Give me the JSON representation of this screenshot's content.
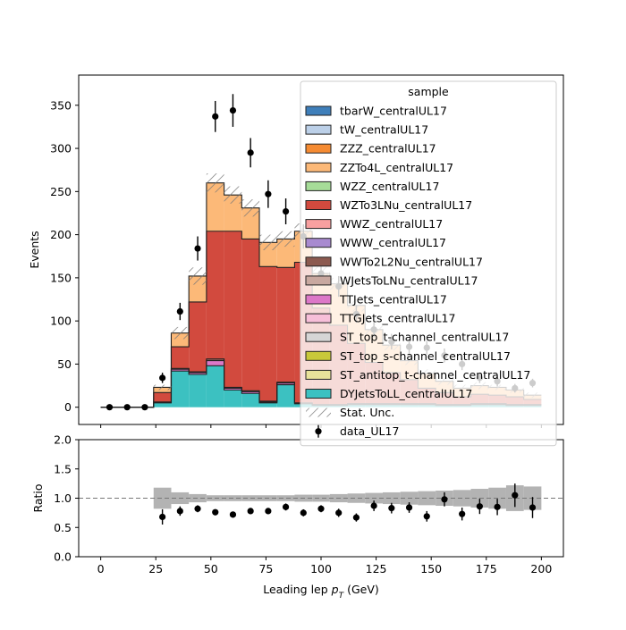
{
  "chart_data": [
    {
      "type": "stacked-histogram",
      "bins": [
        0,
        8,
        16,
        24,
        32,
        40,
        48,
        56,
        64,
        72,
        80,
        88,
        96,
        104,
        112,
        120,
        128,
        136,
        144,
        152,
        160,
        168,
        176,
        184,
        192,
        200
      ],
      "xlim": [
        -10,
        210
      ],
      "ylim": [
        -20,
        385
      ],
      "ylabel": "Events",
      "yticks": [
        "0",
        "50",
        "100",
        "150",
        "200",
        "250",
        "300",
        "350"
      ],
      "xticks": [
        "0",
        "25",
        "50",
        "75",
        "100",
        "125",
        "150",
        "175",
        "200"
      ],
      "legend": {
        "title": "sample",
        "position": "upper right"
      },
      "series": [
        {
          "name": "DYJetsToLL_centralUL17",
          "color": "#3cc1c1",
          "values": [
            0,
            0,
            0,
            5,
            42,
            38,
            48,
            20,
            16,
            5,
            26,
            4,
            2,
            2,
            3,
            3,
            3,
            3,
            3,
            2,
            2,
            3,
            3,
            2,
            2
          ]
        },
        {
          "name": "ST_antitop_t-channel_centralUL17",
          "color": "#e8e29a",
          "values": [
            0,
            0,
            0,
            0,
            0,
            0,
            0,
            0,
            0,
            0,
            0,
            0,
            0,
            0,
            0,
            0,
            0,
            0,
            0,
            0,
            0,
            0,
            0,
            0,
            0
          ]
        },
        {
          "name": "ST_top_s-channel_centralUL17",
          "color": "#c8c83a",
          "values": [
            0,
            0,
            0,
            0,
            0,
            0,
            0,
            0,
            0,
            0,
            0,
            0,
            0,
            0,
            0,
            0,
            0,
            0,
            0,
            0,
            0,
            0,
            0,
            0,
            0
          ]
        },
        {
          "name": "ST_top_t-channel_centralUL17",
          "color": "#d6d6d6",
          "values": [
            0,
            0,
            0,
            0,
            0,
            0,
            0,
            0,
            0,
            0,
            0,
            0,
            0,
            0,
            0,
            0,
            0,
            0,
            0,
            0,
            0,
            0,
            0,
            0,
            0
          ]
        },
        {
          "name": "TTGJets_centralUL17",
          "color": "#f7bfd9",
          "values": [
            0,
            0,
            0,
            0,
            0,
            0,
            0,
            0,
            0,
            0,
            0,
            0,
            0,
            0,
            0,
            0,
            0,
            0,
            0,
            0,
            0,
            0,
            0,
            0,
            0
          ]
        },
        {
          "name": "TTJets_centralUL17",
          "color": "#dc78c8",
          "values": [
            0,
            0,
            0,
            1,
            2,
            2,
            6,
            2,
            2,
            1,
            2,
            1,
            1,
            1,
            1,
            1,
            1,
            1,
            1,
            1,
            1,
            1,
            1,
            1,
            1
          ]
        },
        {
          "name": "WJetsToLNu_centralUL17",
          "color": "#c8a8a0",
          "values": [
            0,
            0,
            0,
            0,
            0,
            0,
            0,
            0,
            0,
            0,
            0,
            0,
            0,
            0,
            0,
            0,
            0,
            0,
            0,
            0,
            0,
            0,
            0,
            0,
            0
          ]
        },
        {
          "name": "WWTo2L2Nu_centralUL17",
          "color": "#8c5a50",
          "values": [
            0,
            0,
            0,
            0,
            1,
            1,
            2,
            1,
            1,
            1,
            1,
            0,
            0,
            0,
            0,
            0,
            0,
            0,
            0,
            0,
            0,
            0,
            0,
            0,
            0
          ]
        },
        {
          "name": "WWW_centralUL17",
          "color": "#a88ad0",
          "values": [
            0,
            0,
            0,
            0,
            0,
            0,
            0,
            0,
            0,
            0,
            0,
            0,
            0,
            0,
            0,
            0,
            0,
            0,
            0,
            0,
            0,
            0,
            0,
            0,
            0
          ]
        },
        {
          "name": "WWZ_centralUL17",
          "color": "#f8a0a0",
          "values": [
            0,
            0,
            0,
            0,
            0,
            0,
            0,
            0,
            0,
            0,
            0,
            0,
            0,
            0,
            0,
            0,
            0,
            0,
            0,
            0,
            0,
            0,
            0,
            0,
            0
          ]
        },
        {
          "name": "WZTo3LNu_centralUL17",
          "color": "#d24a3e",
          "values": [
            0,
            0,
            0,
            11,
            25,
            81,
            148,
            181,
            176,
            156,
            133,
            163,
            112,
            92,
            70,
            48,
            36,
            28,
            18,
            14,
            9,
            11,
            10,
            9,
            6
          ]
        },
        {
          "name": "WZZ_centralUL17",
          "color": "#a6dc98",
          "values": [
            0,
            0,
            0,
            0,
            0,
            0,
            0,
            0,
            0,
            0,
            0,
            0,
            0,
            0,
            0,
            0,
            0,
            0,
            0,
            0,
            0,
            0,
            0,
            0,
            0
          ]
        },
        {
          "name": "ZZTo4L_centralUL17",
          "color": "#fcb978",
          "values": [
            0,
            0,
            0,
            6,
            16,
            30,
            56,
            42,
            36,
            28,
            33,
            36,
            40,
            48,
            44,
            38,
            32,
            22,
            17,
            13,
            10,
            10,
            9,
            8,
            5
          ]
        },
        {
          "name": "ZZZ_centralUL17",
          "color": "#f58b32",
          "values": [
            0,
            0,
            0,
            0,
            0,
            0,
            0,
            0,
            0,
            0,
            0,
            0,
            0,
            0,
            0,
            0,
            0,
            0,
            0,
            0,
            0,
            0,
            0,
            0,
            0
          ]
        },
        {
          "name": "tW_centralUL17",
          "color": "#bcd0e8",
          "values": [
            0,
            0,
            0,
            0,
            0,
            0,
            0,
            0,
            0,
            0,
            0,
            0,
            0,
            0,
            0,
            0,
            0,
            0,
            0,
            0,
            0,
            0,
            0,
            0,
            0
          ]
        },
        {
          "name": "tbarW_centralUL17",
          "color": "#3f7fba",
          "values": [
            0,
            0,
            0,
            0,
            0,
            0,
            0,
            0,
            0,
            0,
            0,
            0,
            0,
            0,
            0,
            0,
            0,
            0,
            0,
            0,
            0,
            0,
            0,
            0,
            0
          ]
        }
      ],
      "stat_unc": {
        "name": "Stat. Unc.",
        "values": [
          0,
          0,
          0,
          3,
          7,
          10,
          11,
          10,
          10,
          9,
          9,
          9,
          8,
          7,
          7,
          6,
          6,
          5,
          5,
          4,
          4,
          4,
          3,
          3,
          3
        ]
      },
      "data": {
        "name": "data_UL17",
        "color": "#000000",
        "x": [
          4,
          12,
          20,
          28,
          36,
          44,
          52,
          60,
          68,
          76,
          84,
          92,
          100,
          108,
          116,
          124,
          132,
          140,
          148,
          156,
          164,
          172,
          180,
          188,
          196
        ],
        "y": [
          0,
          0,
          0,
          34,
          111,
          184,
          337,
          344,
          295,
          247,
          227,
          198,
          155,
          140,
          108,
          90,
          76,
          70,
          69,
          60,
          50,
          34,
          30,
          22,
          28
        ],
        "err": [
          0,
          0,
          0,
          6,
          10,
          14,
          18,
          19,
          17,
          16,
          15,
          14,
          12,
          12,
          10,
          9,
          9,
          8,
          8,
          8,
          7,
          6,
          6,
          5,
          5
        ]
      }
    },
    {
      "type": "ratio",
      "ylabel": "Ratio",
      "xlabel": "Leading lep p_T (GeV)",
      "xlim": [
        -10,
        210
      ],
      "ylim": [
        0.0,
        2.0
      ],
      "yticks": [
        "0.0",
        "0.5",
        "1.0",
        "1.5",
        "2.0"
      ],
      "reference_line": 1.0,
      "band_halfwidth": [
        0,
        0,
        0,
        0.18,
        0.1,
        0.07,
        0.05,
        0.05,
        0.05,
        0.05,
        0.05,
        0.06,
        0.06,
        0.07,
        0.08,
        0.09,
        0.1,
        0.11,
        0.12,
        0.13,
        0.14,
        0.16,
        0.18,
        0.22,
        0.2
      ],
      "x": [
        28,
        36,
        44,
        52,
        60,
        68,
        76,
        84,
        92,
        100,
        108,
        116,
        124,
        132,
        140,
        148,
        156,
        164,
        172,
        180,
        188,
        196
      ],
      "y": [
        0.68,
        0.78,
        0.82,
        0.76,
        0.72,
        0.78,
        0.78,
        0.85,
        0.75,
        0.82,
        0.75,
        0.67,
        0.87,
        0.83,
        0.84,
        0.69,
        0.98,
        0.73,
        0.86,
        0.85,
        1.05,
        0.84
      ],
      "err": [
        0.13,
        0.08,
        0.06,
        0.05,
        0.04,
        0.05,
        0.05,
        0.06,
        0.06,
        0.06,
        0.07,
        0.07,
        0.09,
        0.09,
        0.09,
        0.09,
        0.12,
        0.11,
        0.13,
        0.14,
        0.2,
        0.18
      ],
      "xticks": [
        "0",
        "25",
        "50",
        "75",
        "100",
        "125",
        "150",
        "175",
        "200"
      ]
    }
  ]
}
